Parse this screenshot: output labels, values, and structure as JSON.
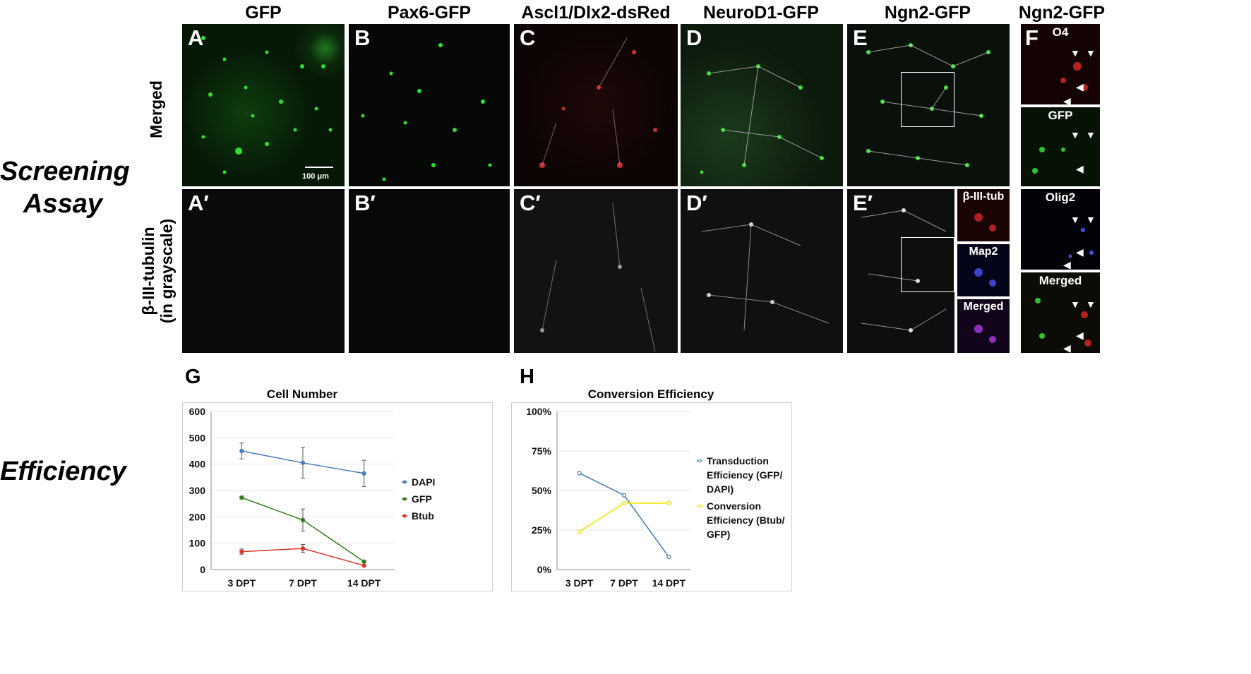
{
  "columns": [
    "GFP",
    "Pax6-GFP",
    "Ascl1/Dlx2-dsRed",
    "NeuroD1-GFP",
    "Ngn2-GFP",
    "Ngn2-GFP"
  ],
  "side_labels": {
    "screening": "Screening\nAssay",
    "efficiency": "Efficiency"
  },
  "row_labels": {
    "merged": "Merged",
    "tubulin": "β-III-tubulin\n(in grayscale)"
  },
  "panels": {
    "A": "A",
    "B": "B",
    "C": "C",
    "D": "D",
    "E": "E",
    "F": "F",
    "A2": "A′",
    "B2": "B′",
    "C2": "C′",
    "D2": "D′",
    "E2": "E′",
    "G": "G",
    "H": "H"
  },
  "scale_bar": "100 μm",
  "inset_e": [
    "β-III-tub",
    "Map2",
    "Merged"
  ],
  "inset_f": [
    "O4",
    "GFP",
    "Olig2",
    "Merged"
  ],
  "colors": {
    "dapi": "#4a7ebb",
    "gfp": "#2e7d1f",
    "btub": "#d9362b",
    "transduction": "#4a7ebb",
    "conversion": "#f2e600"
  },
  "chart_data": [
    {
      "type": "line",
      "title": "Cell Number",
      "categories": [
        "3 DPT",
        "7 DPT",
        "14 DPT"
      ],
      "ylim": [
        0,
        600
      ],
      "yticks": [
        "0",
        "100",
        "200",
        "300",
        "400",
        "500",
        "600"
      ],
      "legend_position": "right",
      "series": [
        {
          "name": "DAPI",
          "values": [
            450,
            405,
            365
          ],
          "errors": [
            30,
            58,
            50
          ]
        },
        {
          "name": "GFP",
          "values": [
            273,
            188,
            30
          ],
          "errors": [
            5,
            42,
            3
          ]
        },
        {
          "name": "Btub",
          "values": [
            68,
            80,
            15
          ],
          "errors": [
            10,
            15,
            2
          ]
        }
      ]
    },
    {
      "type": "line",
      "title": "Conversion Efficiency",
      "categories": [
        "3 DPT",
        "7 DPT",
        "14 DPT"
      ],
      "ylim": [
        0,
        100
      ],
      "yticks": [
        "0%",
        "25%",
        "50%",
        "75%",
        "100%"
      ],
      "legend_position": "right",
      "series": [
        {
          "name": "Transduction Efficiency (GFP/ DAPI)",
          "values": [
            61,
            47,
            8
          ]
        },
        {
          "name": "Conversion Efficiency (Btub/ GFP)",
          "values": [
            24,
            42,
            42
          ]
        }
      ]
    }
  ]
}
